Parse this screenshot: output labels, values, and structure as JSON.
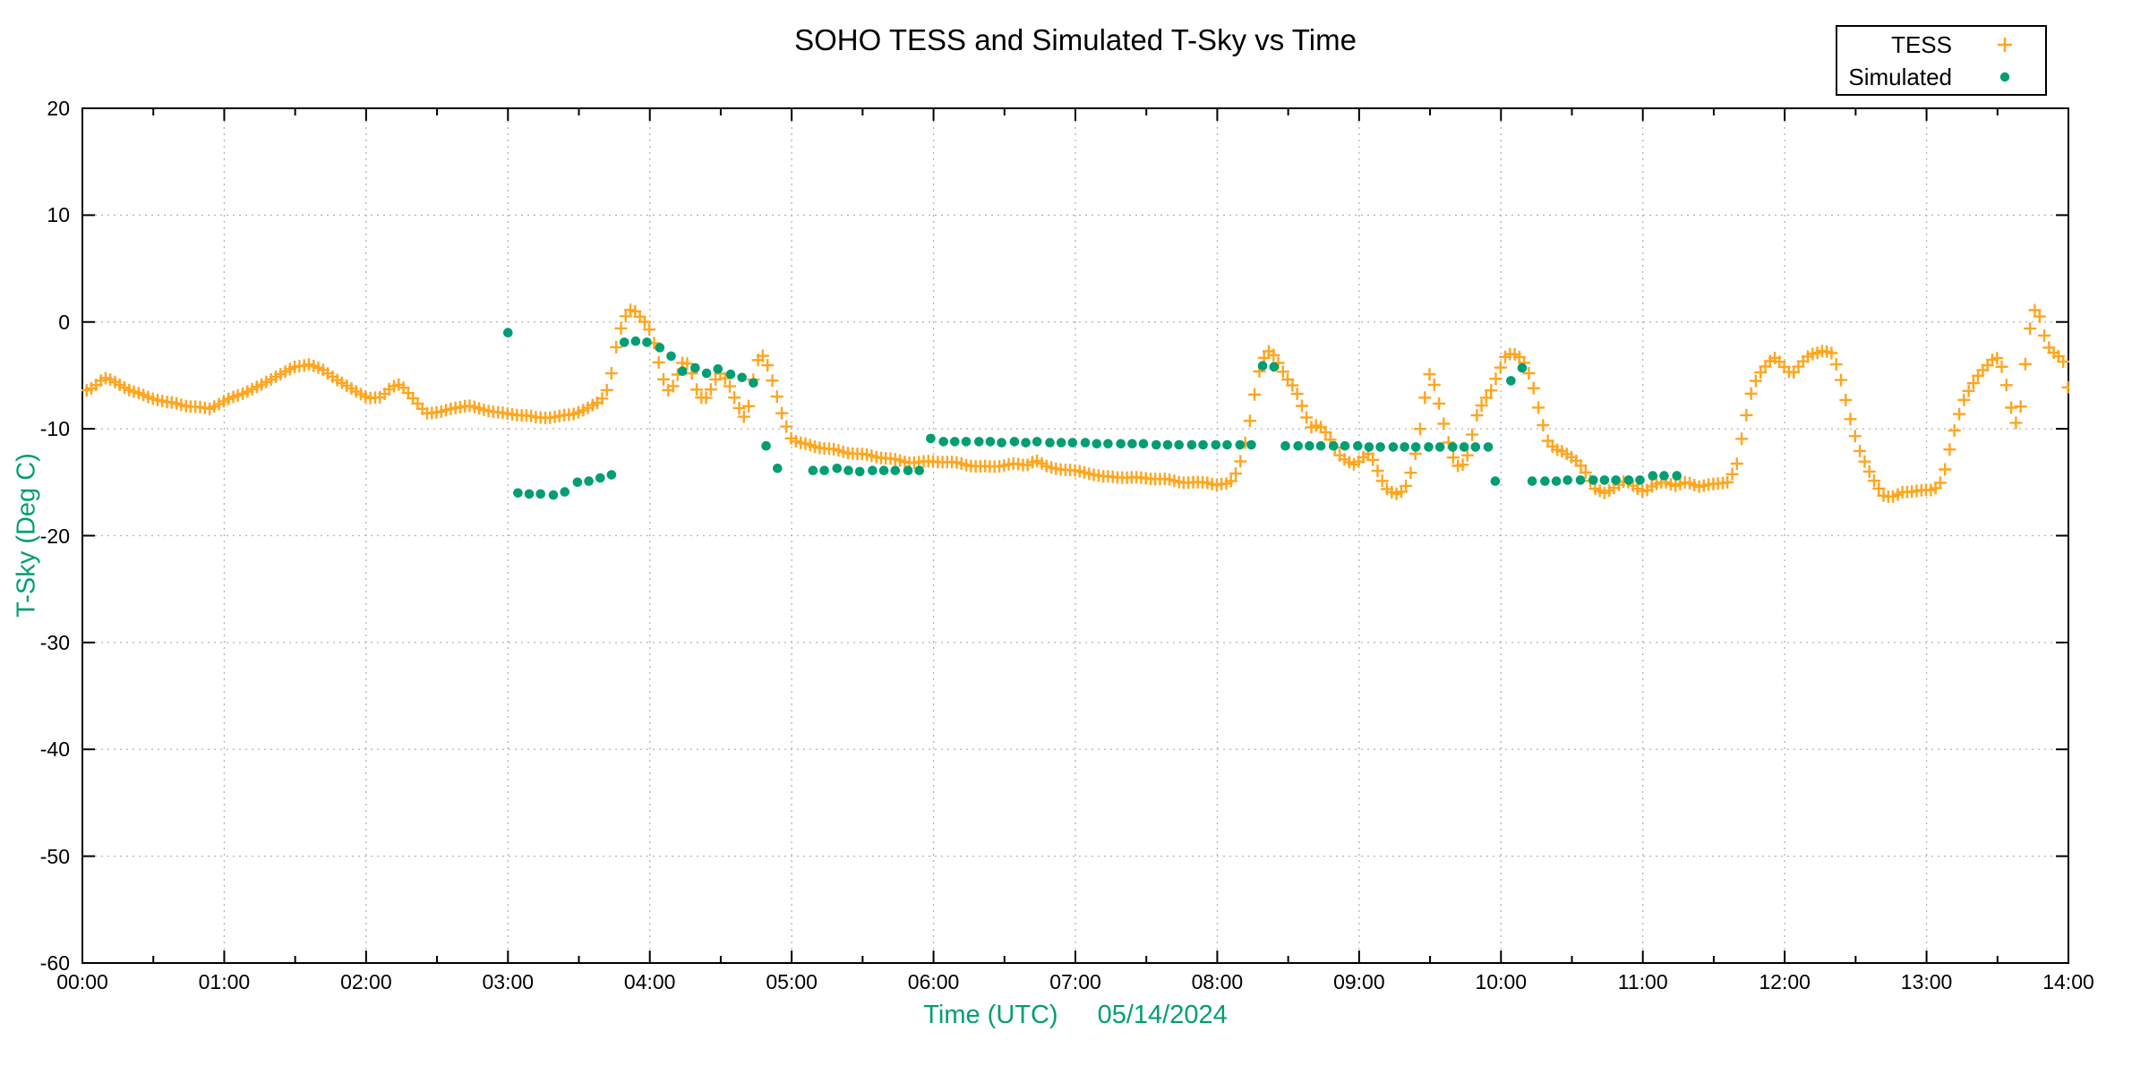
{
  "chart_data": {
    "type": "scatter",
    "title": "SOHO TESS and Simulated T-Sky vs Time",
    "xlabel": "Time (UTC)",
    "date": "05/14/2024",
    "ylabel": "T-Sky (Deg C)",
    "axis_label_color": "#009e73",
    "grid": true,
    "grid_color": "#b3b3b3",
    "legend_position": "top-right",
    "xlim_hours": [
      0,
      14
    ],
    "ylim": [
      -60,
      20
    ],
    "x_tick_labels": [
      "00:00",
      "01:00",
      "02:00",
      "03:00",
      "04:00",
      "05:00",
      "06:00",
      "07:00",
      "08:00",
      "09:00",
      "10:00",
      "11:00",
      "12:00",
      "13:00",
      "14:00"
    ],
    "y_tick_labels": [
      "20",
      "10",
      "0",
      "-10",
      "-20",
      "-30",
      "-40",
      "-50",
      "-60"
    ],
    "y_tick_values": [
      20,
      10,
      0,
      -10,
      -20,
      -30,
      -40,
      -50,
      -60
    ],
    "series": [
      {
        "name": "TESS",
        "marker": "plus",
        "color": "#ffa51e",
        "sample_interval_min": 2,
        "keypoints": [
          [
            0.03,
            -6.4
          ],
          [
            0.08,
            -6.1
          ],
          [
            0.15,
            -5.3
          ],
          [
            0.22,
            -5.6
          ],
          [
            0.33,
            -6.3
          ],
          [
            0.45,
            -6.9
          ],
          [
            0.6,
            -7.6
          ],
          [
            0.75,
            -7.9
          ],
          [
            0.9,
            -8.0
          ],
          [
            1.0,
            -7.4
          ],
          [
            1.12,
            -6.8
          ],
          [
            1.25,
            -6.0
          ],
          [
            1.38,
            -4.9
          ],
          [
            1.5,
            -4.2
          ],
          [
            1.6,
            -4.0
          ],
          [
            1.7,
            -4.6
          ],
          [
            1.8,
            -5.4
          ],
          [
            1.92,
            -6.4
          ],
          [
            2.02,
            -7.1
          ],
          [
            2.1,
            -7.2
          ],
          [
            2.18,
            -6.1
          ],
          [
            2.24,
            -5.8
          ],
          [
            2.32,
            -7.0
          ],
          [
            2.42,
            -8.4
          ],
          [
            2.52,
            -8.5
          ],
          [
            2.62,
            -8.1
          ],
          [
            2.72,
            -7.9
          ],
          [
            2.83,
            -8.1
          ],
          [
            2.95,
            -8.5
          ],
          [
            3.1,
            -8.8
          ],
          [
            3.2,
            -9.0
          ],
          [
            3.33,
            -8.8
          ],
          [
            3.45,
            -8.6
          ],
          [
            3.55,
            -8.2
          ],
          [
            3.65,
            -7.5
          ],
          [
            3.7,
            -6.3
          ],
          [
            3.74,
            -4.3
          ],
          [
            3.77,
            -1.8
          ],
          [
            3.81,
            0.0
          ],
          [
            3.85,
            1.1
          ],
          [
            3.88,
            1.3
          ],
          [
            3.92,
            0.7
          ],
          [
            3.96,
            0.1
          ],
          [
            4.0,
            -0.8
          ],
          [
            4.04,
            -2.4
          ],
          [
            4.08,
            -4.8
          ],
          [
            4.12,
            -6.2
          ],
          [
            4.14,
            -6.6
          ],
          [
            4.18,
            -5.6
          ],
          [
            4.22,
            -4.0
          ],
          [
            4.25,
            -3.6
          ],
          [
            4.29,
            -4.5
          ],
          [
            4.33,
            -6.3
          ],
          [
            4.38,
            -7.4
          ],
          [
            4.42,
            -6.6
          ],
          [
            4.47,
            -5.2
          ],
          [
            4.5,
            -4.8
          ],
          [
            4.55,
            -5.6
          ],
          [
            4.6,
            -7.2
          ],
          [
            4.66,
            -9.0
          ],
          [
            4.7,
            -7.8
          ],
          [
            4.74,
            -4.6
          ],
          [
            4.78,
            -2.8
          ],
          [
            4.82,
            -3.6
          ],
          [
            4.88,
            -6.2
          ],
          [
            4.94,
            -9.0
          ],
          [
            5.0,
            -11.0
          ],
          [
            5.06,
            -11.4
          ],
          [
            5.16,
            -11.7
          ],
          [
            5.3,
            -11.9
          ],
          [
            5.45,
            -12.3
          ],
          [
            5.6,
            -12.7
          ],
          [
            5.8,
            -13.0
          ],
          [
            6.0,
            -13.1
          ],
          [
            6.2,
            -13.3
          ],
          [
            6.4,
            -13.5
          ],
          [
            6.55,
            -13.4
          ],
          [
            6.65,
            -13.5
          ],
          [
            6.72,
            -12.9
          ],
          [
            6.8,
            -13.5
          ],
          [
            6.9,
            -13.7
          ],
          [
            7.0,
            -14.0
          ],
          [
            7.12,
            -14.3
          ],
          [
            7.2,
            -14.5
          ],
          [
            7.32,
            -14.4
          ],
          [
            7.45,
            -14.6
          ],
          [
            7.6,
            -14.8
          ],
          [
            7.75,
            -14.9
          ],
          [
            7.93,
            -15.0
          ],
          [
            8.0,
            -15.3
          ],
          [
            8.08,
            -15.3
          ],
          [
            8.13,
            -14.2
          ],
          [
            8.17,
            -12.8
          ],
          [
            8.22,
            -10.0
          ],
          [
            8.26,
            -7.0
          ],
          [
            8.3,
            -4.4
          ],
          [
            8.34,
            -3.0
          ],
          [
            8.37,
            -2.6
          ],
          [
            8.41,
            -3.3
          ],
          [
            8.46,
            -4.6
          ],
          [
            8.5,
            -5.5
          ],
          [
            8.55,
            -6.3
          ],
          [
            8.61,
            -8.3
          ],
          [
            8.66,
            -9.9
          ],
          [
            8.7,
            -9.7
          ],
          [
            8.74,
            -9.9
          ],
          [
            8.78,
            -10.6
          ],
          [
            8.82,
            -11.5
          ],
          [
            8.87,
            -12.6
          ],
          [
            8.92,
            -13.1
          ],
          [
            8.97,
            -13.4
          ],
          [
            9.02,
            -12.8
          ],
          [
            9.06,
            -12.3
          ],
          [
            9.1,
            -13.0
          ],
          [
            9.15,
            -14.6
          ],
          [
            9.2,
            -15.7
          ],
          [
            9.26,
            -16.0
          ],
          [
            9.32,
            -15.7
          ],
          [
            9.38,
            -13.5
          ],
          [
            9.43,
            -10.0
          ],
          [
            9.47,
            -6.5
          ],
          [
            9.5,
            -4.7
          ],
          [
            9.54,
            -6.3
          ],
          [
            9.59,
            -9.2
          ],
          [
            9.64,
            -11.8
          ],
          [
            9.68,
            -13.3
          ],
          [
            9.72,
            -13.6
          ],
          [
            9.77,
            -12.3
          ],
          [
            9.82,
            -9.0
          ],
          [
            9.87,
            -7.6
          ],
          [
            9.93,
            -6.4
          ],
          [
            9.98,
            -4.8
          ],
          [
            10.03,
            -3.3
          ],
          [
            10.08,
            -2.9
          ],
          [
            10.13,
            -3.3
          ],
          [
            10.18,
            -4.1
          ],
          [
            10.23,
            -6.2
          ],
          [
            10.28,
            -8.9
          ],
          [
            10.33,
            -11.1
          ],
          [
            10.38,
            -11.9
          ],
          [
            10.44,
            -12.2
          ],
          [
            10.5,
            -12.7
          ],
          [
            10.55,
            -13.2
          ],
          [
            10.6,
            -14.2
          ],
          [
            10.66,
            -15.6
          ],
          [
            10.73,
            -15.9
          ],
          [
            10.81,
            -15.4
          ],
          [
            10.88,
            -14.8
          ],
          [
            10.95,
            -15.5
          ],
          [
            11.01,
            -16.0
          ],
          [
            11.08,
            -15.3
          ],
          [
            11.15,
            -14.9
          ],
          [
            11.23,
            -15.3
          ],
          [
            11.31,
            -14.9
          ],
          [
            11.4,
            -15.4
          ],
          [
            11.5,
            -15.3
          ],
          [
            11.6,
            -15.0
          ],
          [
            11.66,
            -13.5
          ],
          [
            11.71,
            -10.0
          ],
          [
            11.76,
            -6.8
          ],
          [
            11.81,
            -5.0
          ],
          [
            11.86,
            -4.2
          ],
          [
            11.91,
            -3.5
          ],
          [
            11.94,
            -3.4
          ],
          [
            11.98,
            -4.0
          ],
          [
            12.03,
            -4.7
          ],
          [
            12.06,
            -4.8
          ],
          [
            12.11,
            -4.0
          ],
          [
            12.18,
            -3.0
          ],
          [
            12.27,
            -2.6
          ],
          [
            12.33,
            -2.9
          ],
          [
            12.38,
            -4.5
          ],
          [
            12.43,
            -7.3
          ],
          [
            12.48,
            -10.0
          ],
          [
            12.53,
            -12.1
          ],
          [
            12.58,
            -13.6
          ],
          [
            12.64,
            -15.1
          ],
          [
            12.7,
            -16.3
          ],
          [
            12.77,
            -16.3
          ],
          [
            12.84,
            -15.8
          ],
          [
            12.95,
            -15.9
          ],
          [
            13.04,
            -15.8
          ],
          [
            13.09,
            -15.3
          ],
          [
            13.13,
            -13.8
          ],
          [
            13.18,
            -11.0
          ],
          [
            13.22,
            -9.0
          ],
          [
            13.27,
            -7.0
          ],
          [
            13.32,
            -5.9
          ],
          [
            13.37,
            -4.9
          ],
          [
            13.43,
            -4.1
          ],
          [
            13.48,
            -3.3
          ],
          [
            13.51,
            -3.5
          ],
          [
            13.55,
            -4.9
          ],
          [
            13.58,
            -7.2
          ],
          [
            13.62,
            -9.2
          ],
          [
            13.64,
            -9.7
          ],
          [
            13.67,
            -7.4
          ],
          [
            13.7,
            -3.5
          ],
          [
            13.73,
            -0.6
          ],
          [
            13.76,
            1.2
          ],
          [
            13.79,
            0.9
          ],
          [
            13.82,
            -0.8
          ],
          [
            13.85,
            -2.2
          ],
          [
            13.89,
            -2.8
          ],
          [
            13.93,
            -3.2
          ],
          [
            13.96,
            -3.5
          ],
          [
            13.98,
            -4.8
          ],
          [
            14.0,
            -6.4
          ]
        ]
      },
      {
        "name": "Simulated",
        "marker": "filled-circle",
        "color": "#009e73",
        "sample_interval_min": 5,
        "points": [
          [
            3.0,
            -1.0
          ],
          [
            3.07,
            -16.0
          ],
          [
            3.15,
            -16.1
          ],
          [
            3.23,
            -16.1
          ],
          [
            3.32,
            -16.2
          ],
          [
            3.4,
            -15.9
          ],
          [
            3.49,
            -15.0
          ],
          [
            3.57,
            -14.9
          ],
          [
            3.65,
            -14.6
          ],
          [
            3.73,
            -14.3
          ],
          [
            3.82,
            -1.9
          ],
          [
            3.9,
            -1.8
          ],
          [
            3.98,
            -1.9
          ],
          [
            4.07,
            -2.4
          ],
          [
            4.15,
            -3.2
          ],
          [
            4.23,
            -4.6
          ],
          [
            4.32,
            -4.3
          ],
          [
            4.4,
            -4.8
          ],
          [
            4.48,
            -4.4
          ],
          [
            4.57,
            -4.9
          ],
          [
            4.65,
            -5.2
          ],
          [
            4.73,
            -5.7
          ],
          [
            4.82,
            -11.6
          ],
          [
            4.9,
            -13.7
          ],
          [
            5.15,
            -13.9
          ],
          [
            5.23,
            -13.9
          ],
          [
            5.32,
            -13.7
          ],
          [
            5.4,
            -13.9
          ],
          [
            5.48,
            -14.0
          ],
          [
            5.57,
            -13.9
          ],
          [
            5.65,
            -13.9
          ],
          [
            5.73,
            -13.9
          ],
          [
            5.82,
            -13.9
          ],
          [
            5.9,
            -13.9
          ],
          [
            5.98,
            -10.9
          ],
          [
            6.07,
            -11.2
          ],
          [
            6.15,
            -11.2
          ],
          [
            6.23,
            -11.2
          ],
          [
            6.32,
            -11.2
          ],
          [
            6.4,
            -11.2
          ],
          [
            6.48,
            -11.3
          ],
          [
            6.57,
            -11.2
          ],
          [
            6.65,
            -11.3
          ],
          [
            6.73,
            -11.2
          ],
          [
            6.82,
            -11.3
          ],
          [
            6.9,
            -11.3
          ],
          [
            6.98,
            -11.3
          ],
          [
            7.07,
            -11.3
          ],
          [
            7.15,
            -11.4
          ],
          [
            7.23,
            -11.4
          ],
          [
            7.32,
            -11.4
          ],
          [
            7.4,
            -11.4
          ],
          [
            7.48,
            -11.4
          ],
          [
            7.57,
            -11.5
          ],
          [
            7.65,
            -11.5
          ],
          [
            7.73,
            -11.5
          ],
          [
            7.82,
            -11.5
          ],
          [
            7.9,
            -11.5
          ],
          [
            7.99,
            -11.5
          ],
          [
            8.07,
            -11.5
          ],
          [
            8.16,
            -11.5
          ],
          [
            8.24,
            -11.5
          ],
          [
            8.32,
            -4.1
          ],
          [
            8.4,
            -4.2
          ],
          [
            8.48,
            -11.6
          ],
          [
            8.57,
            -11.6
          ],
          [
            8.65,
            -11.6
          ],
          [
            8.73,
            -11.6
          ],
          [
            8.82,
            -11.6
          ],
          [
            8.9,
            -11.6
          ],
          [
            8.99,
            -11.6
          ],
          [
            9.07,
            -11.7
          ],
          [
            9.15,
            -11.7
          ],
          [
            9.24,
            -11.7
          ],
          [
            9.32,
            -11.7
          ],
          [
            9.4,
            -11.7
          ],
          [
            9.49,
            -11.7
          ],
          [
            9.57,
            -11.7
          ],
          [
            9.66,
            -11.7
          ],
          [
            9.74,
            -11.7
          ],
          [
            9.82,
            -11.7
          ],
          [
            9.91,
            -11.7
          ],
          [
            9.96,
            -14.9
          ],
          [
            10.07,
            -5.5
          ],
          [
            10.15,
            -4.3
          ],
          [
            10.22,
            -14.9
          ],
          [
            10.31,
            -14.9
          ],
          [
            10.39,
            -14.9
          ],
          [
            10.47,
            -14.8
          ],
          [
            10.56,
            -14.8
          ],
          [
            10.65,
            -14.8
          ],
          [
            10.73,
            -14.8
          ],
          [
            10.81,
            -14.8
          ],
          [
            10.9,
            -14.8
          ],
          [
            10.98,
            -14.8
          ],
          [
            11.07,
            -14.4
          ],
          [
            11.15,
            -14.4
          ],
          [
            11.24,
            -14.4
          ]
        ]
      }
    ]
  }
}
